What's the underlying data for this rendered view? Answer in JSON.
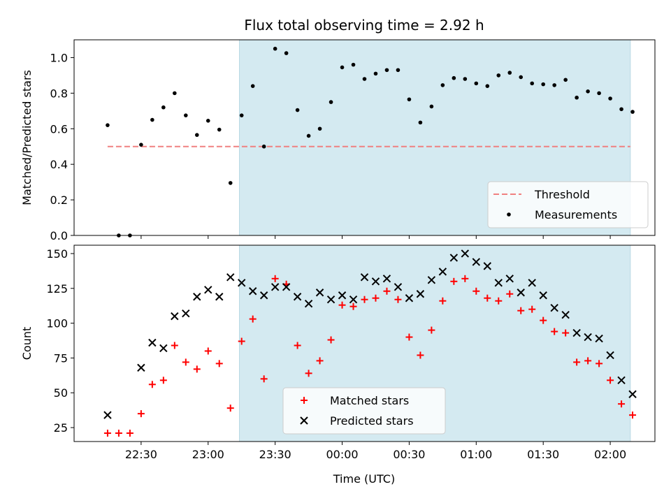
{
  "chart_data": {
    "title": "Flux total observing time = 2.92 h",
    "xlabel": "Time (UTC)",
    "x_ticks": [
      "22:30",
      "23:00",
      "23:30",
      "00:00",
      "00:30",
      "01:00",
      "01:30",
      "02:00"
    ],
    "x_tick_minutes": [
      1350,
      1380,
      1410,
      1440,
      1470,
      1500,
      1530,
      1560
    ],
    "xlim_minutes": [
      1320,
      1580
    ],
    "shaded_interval_minutes": [
      1394,
      1569
    ],
    "shade_color": "#d4eaf1",
    "panels": [
      {
        "type": "scatter",
        "ylabel": "Matched/Predicted stars",
        "ylim": [
          0,
          1.1
        ],
        "y_ticks": [
          0.0,
          0.2,
          0.4,
          0.6,
          0.8,
          1.0
        ],
        "y_tick_labels": [
          "0.0",
          "0.2",
          "0.4",
          "0.6",
          "0.8",
          "1.0"
        ],
        "legend_position": "lower-right",
        "series": [
          {
            "name": "Threshold",
            "kind": "dashed-line",
            "color": "#f08080",
            "x": [
              1335,
              1569
            ],
            "y": [
              0.5,
              0.5
            ]
          },
          {
            "name": "Measurements",
            "kind": "dot",
            "color": "#000000",
            "x": [
              1335,
              1340,
              1345,
              1350,
              1355,
              1360,
              1365,
              1370,
              1375,
              1380,
              1385,
              1390,
              1395,
              1400,
              1405,
              1410,
              1415,
              1420,
              1425,
              1430,
              1435,
              1440,
              1445,
              1450,
              1455,
              1460,
              1465,
              1470,
              1475,
              1480,
              1485,
              1490,
              1495,
              1500,
              1505,
              1510,
              1515,
              1520,
              1525,
              1530,
              1535,
              1540,
              1545,
              1550,
              1555,
              1560,
              1565,
              1570
            ],
            "y": [
              0.62,
              0.0,
              0.0,
              0.51,
              0.65,
              0.72,
              0.8,
              0.675,
              0.565,
              0.645,
              0.595,
              0.295,
              0.675,
              0.84,
              0.5,
              1.05,
              1.025,
              0.705,
              0.56,
              0.6,
              0.75,
              0.945,
              0.96,
              0.88,
              0.91,
              0.93,
              0.93,
              0.765,
              0.635,
              0.725,
              0.845,
              0.885,
              0.88,
              0.855,
              0.84,
              0.9,
              0.915,
              0.89,
              0.855,
              0.85,
              0.845,
              0.875,
              0.775,
              0.81,
              0.8,
              0.77,
              0.71,
              0.695
            ]
          }
        ]
      },
      {
        "type": "scatter",
        "ylabel": "Count",
        "ylim": [
          15,
          156
        ],
        "y_ticks": [
          25,
          50,
          75,
          100,
          125,
          150
        ],
        "y_tick_labels": [
          "25",
          "50",
          "75",
          "100",
          "125",
          "150"
        ],
        "legend_position": "lower-center",
        "series": [
          {
            "name": "Matched stars",
            "kind": "plus",
            "color": "#ff0000",
            "x": [
              1335,
              1340,
              1345,
              1350,
              1355,
              1360,
              1365,
              1370,
              1375,
              1380,
              1385,
              1390,
              1395,
              1400,
              1405,
              1410,
              1415,
              1420,
              1425,
              1430,
              1435,
              1440,
              1445,
              1450,
              1455,
              1460,
              1465,
              1470,
              1475,
              1480,
              1485,
              1490,
              1495,
              1500,
              1505,
              1510,
              1515,
              1520,
              1525,
              1530,
              1535,
              1540,
              1545,
              1550,
              1555,
              1560,
              1565,
              1570
            ],
            "y": [
              21,
              21,
              21,
              35,
              56,
              59,
              84,
              72,
              67,
              80,
              71,
              39,
              87,
              103,
              60,
              132,
              128,
              84,
              64,
              73,
              88,
              113,
              112,
              117,
              118,
              123,
              117,
              90,
              77,
              95,
              116,
              130,
              132,
              123,
              118,
              116,
              121,
              109,
              110,
              102,
              94,
              93,
              72,
              73,
              71,
              59,
              42,
              34
            ]
          },
          {
            "name": "Predicted stars",
            "kind": "cross",
            "color": "#000000",
            "x": [
              1335,
              1350,
              1355,
              1360,
              1365,
              1370,
              1375,
              1380,
              1385,
              1390,
              1395,
              1400,
              1405,
              1410,
              1415,
              1420,
              1425,
              1430,
              1435,
              1440,
              1445,
              1450,
              1455,
              1460,
              1465,
              1470,
              1475,
              1480,
              1485,
              1490,
              1495,
              1500,
              1505,
              1510,
              1515,
              1520,
              1525,
              1530,
              1535,
              1540,
              1545,
              1550,
              1555,
              1560,
              1565,
              1570
            ],
            "y": [
              34,
              68,
              86,
              82,
              105,
              107,
              119,
              124,
              119,
              133,
              129,
              123,
              120,
              126,
              126,
              119,
              114,
              122,
              117,
              120,
              117,
              133,
              130,
              132,
              126,
              118,
              121,
              131,
              137,
              147,
              150,
              144,
              141,
              129,
              132,
              122,
              129,
              120,
              111,
              106,
              93,
              90,
              89,
              77,
              59,
              49
            ]
          }
        ]
      }
    ]
  }
}
